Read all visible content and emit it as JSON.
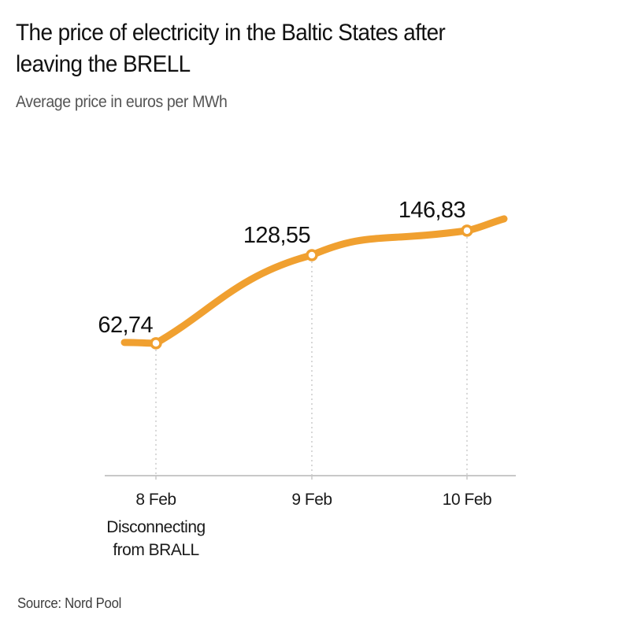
{
  "title": "The price of electricity in the Baltic States after leaving the BRELL",
  "subtitle": "Average price in euros per MWh",
  "source": "Source: Nord Pool",
  "colors": {
    "line": "#f0a030",
    "marker_fill": "#ffffff",
    "axis": "#c8c8c8",
    "guide": "#bdbdbd"
  },
  "chart_data": {
    "type": "line",
    "title": "The price of electricity in the Baltic States after leaving the BRELL",
    "ylabel": "Average price in euros per MWh",
    "xlabel": "",
    "categories": [
      "8 Feb",
      "9 Feb",
      "10 Feb"
    ],
    "values": [
      62.74,
      128.55,
      146.83
    ],
    "value_labels": [
      "62,74",
      "128,55",
      "146,83"
    ],
    "annotations": [
      {
        "category": "8 Feb",
        "lines": [
          "Disconnecting",
          "from BRALL"
        ]
      }
    ],
    "grid": false,
    "legend": "none"
  }
}
